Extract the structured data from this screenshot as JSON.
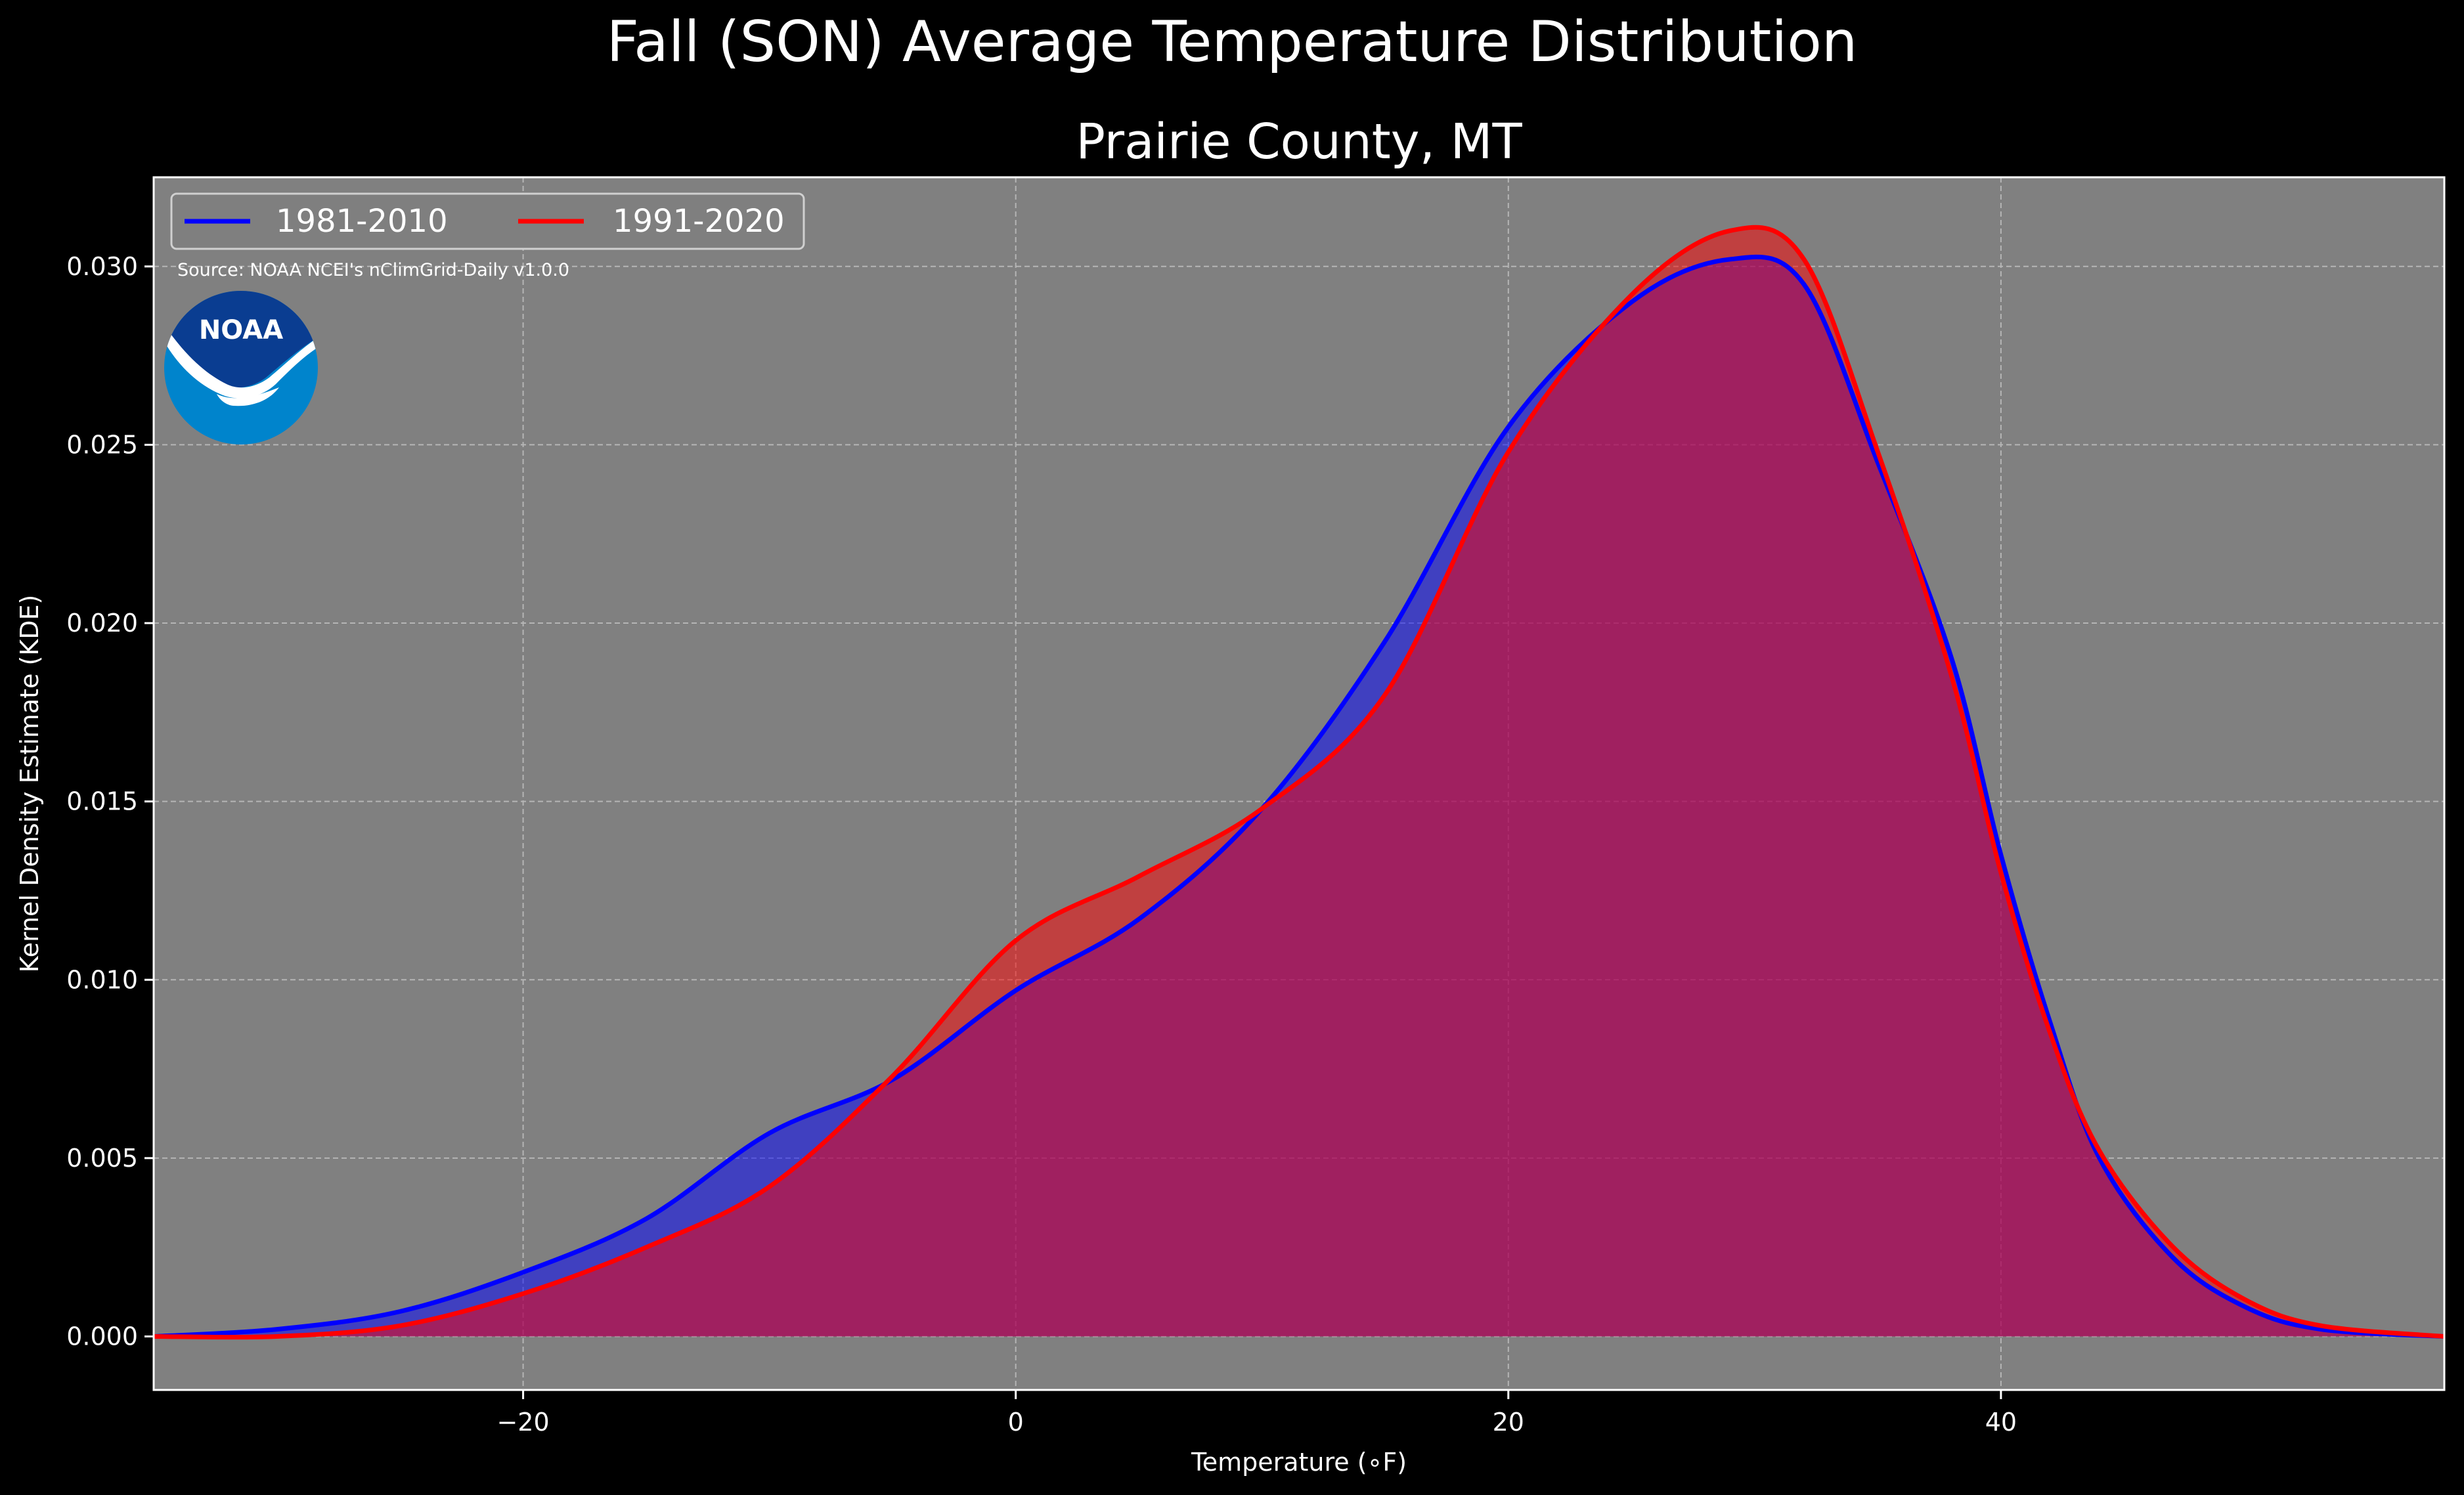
{
  "figure": {
    "suptitle": "Fall (SON) Average Temperature Distribution",
    "title": "Prairie County, MT",
    "source_note": "Source: NOAA NCEI's nClimGrid-Daily v1.0.0",
    "logo_text": "NOAA"
  },
  "chart_data": {
    "type": "area",
    "xlabel": "Temperature (∘F)",
    "ylabel": "Kernel Density Estimate (KDE)",
    "xlim": [
      -35,
      58
    ],
    "ylim": [
      -0.0015,
      0.0325
    ],
    "xticks": [
      -20,
      0,
      20,
      40
    ],
    "xtick_labels": [
      "−20",
      "0",
      "20",
      "40"
    ],
    "yticks": [
      0.0,
      0.005,
      0.01,
      0.015,
      0.02,
      0.025,
      0.03
    ],
    "ytick_labels": [
      "0.000",
      "0.005",
      "0.010",
      "0.015",
      "0.020",
      "0.025",
      "0.030"
    ],
    "grid": true,
    "legend_position": "top-left",
    "background_color": "#808080",
    "series": [
      {
        "name": "1981-2010",
        "color": "#0000ff",
        "points": [
          [
            -35,
            0.0
          ],
          [
            -30,
            0.0002
          ],
          [
            -25,
            0.0007
          ],
          [
            -20,
            0.0018
          ],
          [
            -15,
            0.0033
          ],
          [
            -10,
            0.0057
          ],
          [
            -5,
            0.0072
          ],
          [
            0,
            0.0097
          ],
          [
            5,
            0.0117
          ],
          [
            10,
            0.0148
          ],
          [
            15,
            0.0195
          ],
          [
            20,
            0.0255
          ],
          [
            25,
            0.029
          ],
          [
            29,
            0.0302
          ],
          [
            32,
            0.0295
          ],
          [
            35,
            0.0245
          ],
          [
            38,
            0.019
          ],
          [
            40,
            0.0135
          ],
          [
            42,
            0.0088
          ],
          [
            44,
            0.005
          ],
          [
            47,
            0.0022
          ],
          [
            50,
            0.0008
          ],
          [
            53,
            0.0002
          ],
          [
            58,
            0.0
          ]
        ]
      },
      {
        "name": "1991-2020",
        "color": "#ff0000",
        "points": [
          [
            -35,
            0.0
          ],
          [
            -30,
            0.0
          ],
          [
            -25,
            0.0003
          ],
          [
            -20,
            0.0012
          ],
          [
            -15,
            0.0025
          ],
          [
            -10,
            0.0042
          ],
          [
            -5,
            0.0073
          ],
          [
            0,
            0.0111
          ],
          [
            5,
            0.0129
          ],
          [
            10,
            0.0148
          ],
          [
            15,
            0.018
          ],
          [
            20,
            0.0248
          ],
          [
            25,
            0.0292
          ],
          [
            29,
            0.031
          ],
          [
            32,
            0.0302
          ],
          [
            35,
            0.0248
          ],
          [
            38,
            0.0185
          ],
          [
            40,
            0.013
          ],
          [
            42,
            0.0085
          ],
          [
            44,
            0.0052
          ],
          [
            47,
            0.0025
          ],
          [
            50,
            0.001
          ],
          [
            53,
            0.0003
          ],
          [
            58,
            0.0
          ]
        ]
      }
    ]
  }
}
